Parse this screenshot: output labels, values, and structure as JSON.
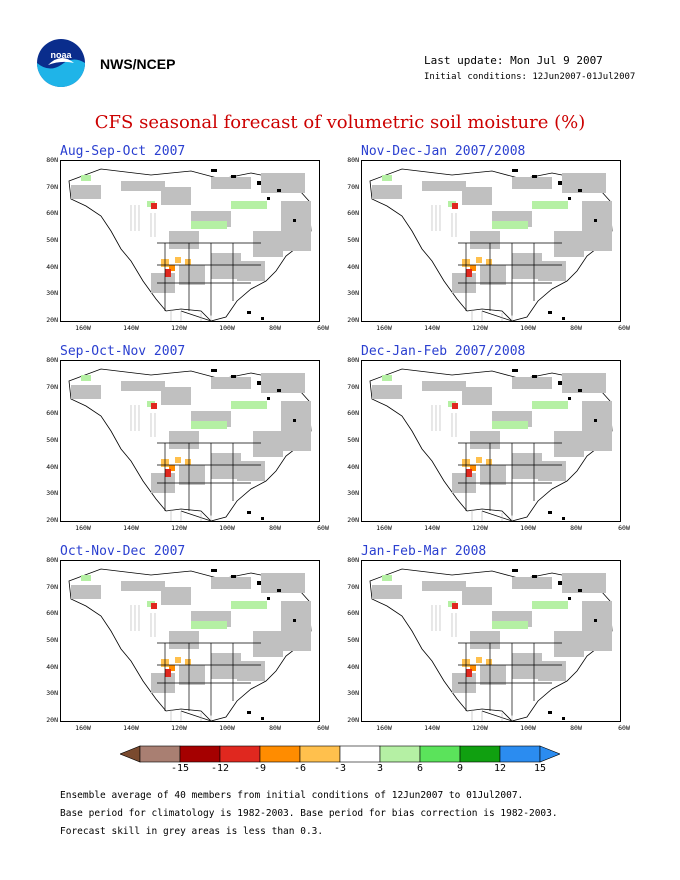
{
  "header": {
    "org": "NWS/NCEP",
    "last_update": "Last update: Mon Jul  9 2007",
    "initial_conditions": "Initial conditions: 12Jun2007-01Jul2007",
    "logo_text": "noaa"
  },
  "title": "CFS seasonal forecast of volumetric soil moisture (%)",
  "panels": [
    {
      "title": "Aug-Sep-Oct 2007"
    },
    {
      "title": "Nov-Dec-Jan 2007/2008"
    },
    {
      "title": "Sep-Oct-Nov 2007"
    },
    {
      "title": "Dec-Jan-Feb 2007/2008"
    },
    {
      "title": "Oct-Nov-Dec 2007"
    },
    {
      "title": "Jan-Feb-Mar 2008"
    }
  ],
  "axes": {
    "lat_labels": [
      "80N",
      "70N",
      "60N",
      "50N",
      "40N",
      "30N",
      "20N"
    ],
    "lon_labels": [
      "160W",
      "140W",
      "120W",
      "100W",
      "80W",
      "60W"
    ]
  },
  "colorbar": {
    "labels": [
      "-15",
      "-12",
      "-9",
      "-6",
      "-3",
      "3",
      "6",
      "9",
      "12",
      "15"
    ],
    "colors": [
      "#7a4a2e",
      "#a97f72",
      "#a50000",
      "#e0281f",
      "#ff8c00",
      "#ffc04d",
      "#ffffff",
      "#b5f0a4",
      "#5be35b",
      "#10a010",
      "#2b8cf0",
      "#2b8cf0"
    ]
  },
  "footer": {
    "line1": "Ensemble average of 40 members from initial conditions of 12Jun2007 to 01Jul2007.",
    "line2": "Base period for climatology is 1982-2003. Base period for bias correction is 1982-2003.",
    "line3": "Forecast skill in grey areas is less than 0.3."
  },
  "colors": {
    "title": "#cc0000",
    "panel_title": "#2a3fd0",
    "skill_grey": "#c0c0c0"
  }
}
